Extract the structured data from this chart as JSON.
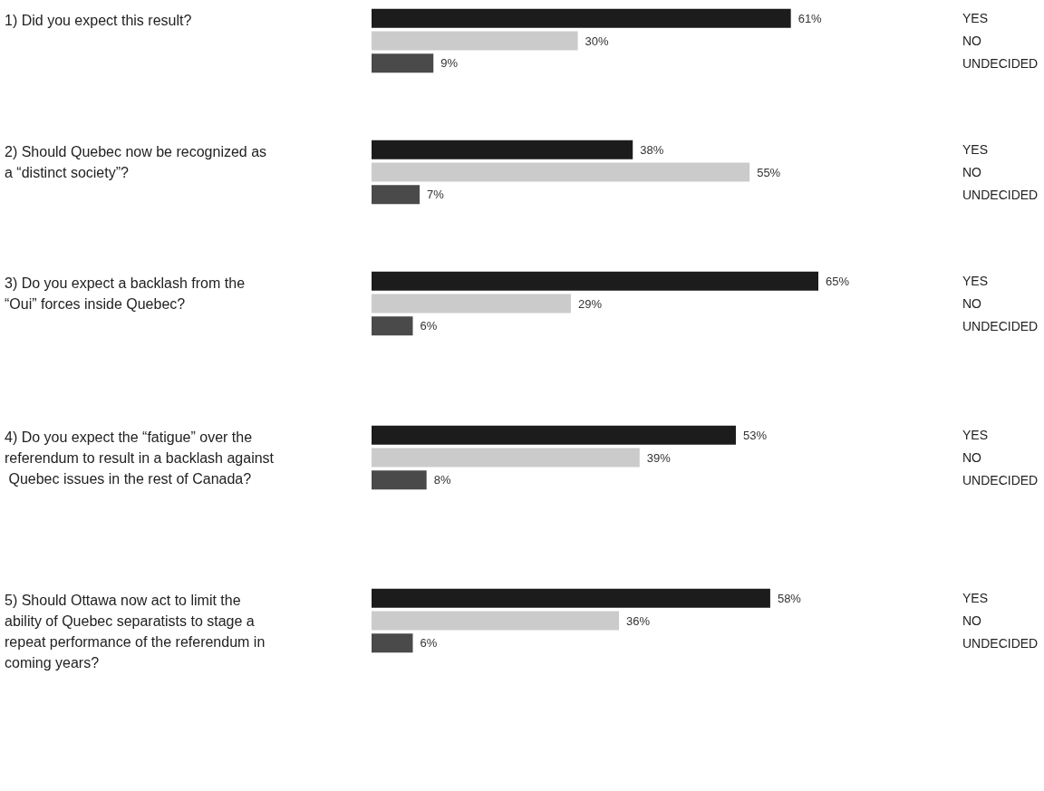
{
  "chart_data": [
    {
      "type": "bar",
      "orientation": "horizontal",
      "ylabel": "1) Did you expect this result?",
      "categories": [
        "YES",
        "NO",
        "UNDECIDED"
      ],
      "values": [
        61,
        30,
        9
      ],
      "colors": [
        "#1c1c1c",
        "#cbcbcb",
        "#4a4a4a"
      ],
      "value_labels": [
        "61%",
        "30%",
        "9%"
      ],
      "tick_labels": "y"
    },
    {
      "type": "bar",
      "orientation": "horizontal",
      "ylabel": "2) Should Quebec now be recognized as a “distinct society”?",
      "categories": [
        "YES",
        "NO",
        "UNDECIDED"
      ],
      "values": [
        38,
        55,
        7
      ],
      "colors": [
        "#1c1c1c",
        "#cbcbcb",
        "#4a4a4a"
      ],
      "value_labels": [
        "38%",
        "55%",
        "7%"
      ],
      "tick_labels": "y"
    },
    {
      "type": "bar",
      "orientation": "horizontal",
      "ylabel": "3) Do you expect a backlash from the “Oui” forces inside Quebec?",
      "categories": [
        "YES",
        "NO",
        "UNDECIDED"
      ],
      "values": [
        65,
        29,
        6
      ],
      "colors": [
        "#1c1c1c",
        "#cbcbcb",
        "#4a4a4a"
      ],
      "value_labels": [
        "65%",
        "29%",
        "6%"
      ],
      "tick_labels": "y"
    },
    {
      "type": "bar",
      "orientation": "horizontal",
      "ylabel": "4) Do you expect the “fatigue” over the referendum to result in a backlash against Quebec issues in the rest of Canada?",
      "categories": [
        "YES",
        "NO",
        "UNDECIDED"
      ],
      "values": [
        53,
        39,
        8
      ],
      "colors": [
        "#1c1c1c",
        "#cbcbcb",
        "#4a4a4a"
      ],
      "value_labels": [
        "53%",
        "39%",
        "8%"
      ],
      "tick_labels": "y"
    },
    {
      "type": "bar",
      "orientation": "horizontal",
      "ylabel": "5) Should Ottawa now act to limit the ability of Quebec separatists to stage a repeat performance of the referendum in coming years?",
      "categories": [
        "YES",
        "NO",
        "UNDECIDED"
      ],
      "values": [
        58,
        36,
        6
      ],
      "colors": [
        "#1c1c1c",
        "#cbcbcb",
        "#4a4a4a"
      ],
      "value_labels": [
        "58%",
        "36%",
        "6%"
      ],
      "tick_labels": "y"
    }
  ]
}
